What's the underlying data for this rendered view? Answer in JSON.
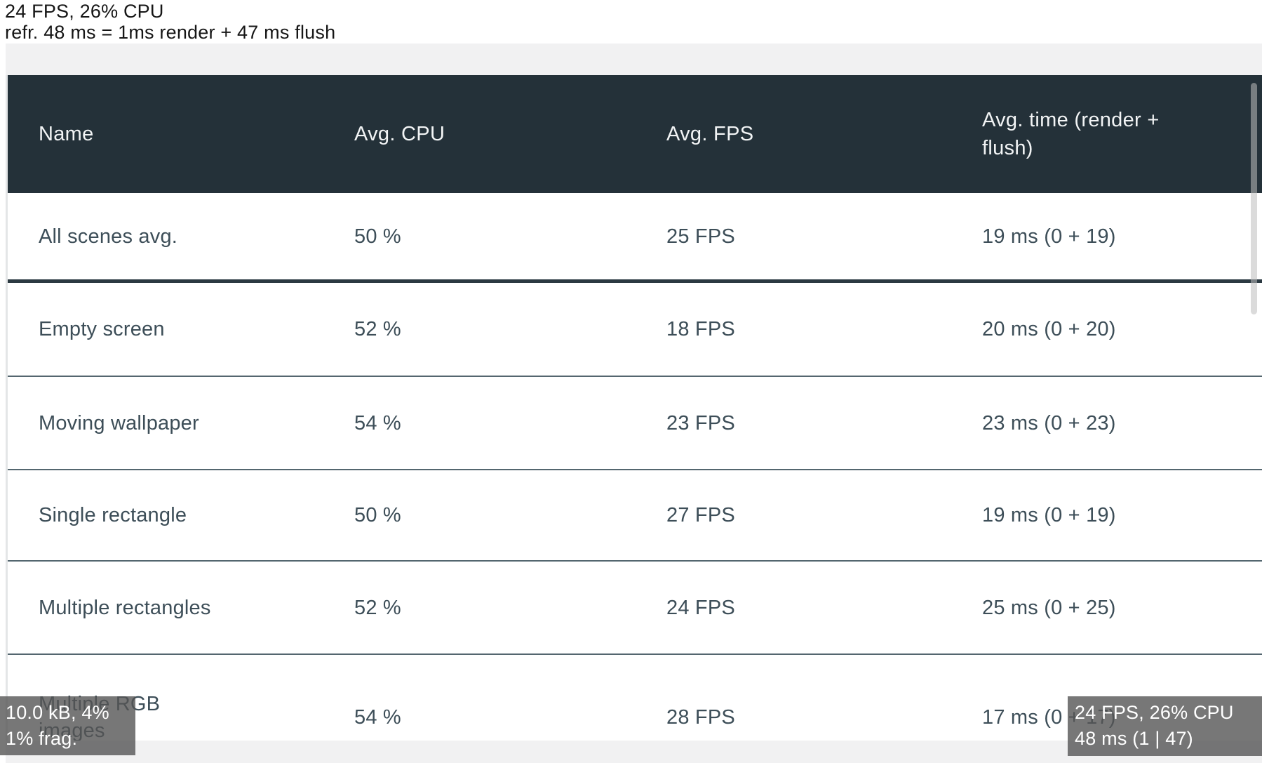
{
  "debug_overlay": {
    "line1": "24 FPS, 26% CPU",
    "line2": "refr. 48 ms = 1ms render + 47 ms flush"
  },
  "table": {
    "columns": [
      "Name",
      "Avg. CPU",
      "Avg. FPS",
      "Avg. time (render +\nflush)"
    ],
    "rows": [
      {
        "name": "All scenes avg.",
        "cpu": "50 %",
        "fps": "25 FPS",
        "time": "19 ms (0 + 19)"
      },
      {
        "name": "Empty screen",
        "cpu": "52 %",
        "fps": "18 FPS",
        "time": "20 ms (0 + 20)"
      },
      {
        "name": "Moving wallpaper",
        "cpu": "54 %",
        "fps": "23 FPS",
        "time": "23 ms (0 + 23)"
      },
      {
        "name": "Single rectangle",
        "cpu": "50 %",
        "fps": "27 FPS",
        "time": "19 ms (0 + 19)"
      },
      {
        "name": "Multiple rectangles",
        "cpu": "52 %",
        "fps": "24 FPS",
        "time": "25 ms (0 + 25)"
      },
      {
        "name": "Multiple RGB\nimages",
        "cpu": "54 %",
        "fps": "28 FPS",
        "time": "17 ms (0 + 17)"
      }
    ]
  },
  "badges": {
    "memory": {
      "line1": "10.0 kB, 4%",
      "line2": "1% frag."
    },
    "perf": {
      "line1": "24 FPS, 26% CPU",
      "line2": "48 ms (1 | 47)"
    }
  },
  "colors": {
    "header_bg": "#243139",
    "header_text": "#f2f4f5",
    "body_text": "#3d4e58",
    "thick_separator": "#2b3941",
    "thin_separator": "#54666f",
    "panel_bg": "#f1f1f2",
    "badge_bg": "rgba(85,85,85,0.8)"
  }
}
